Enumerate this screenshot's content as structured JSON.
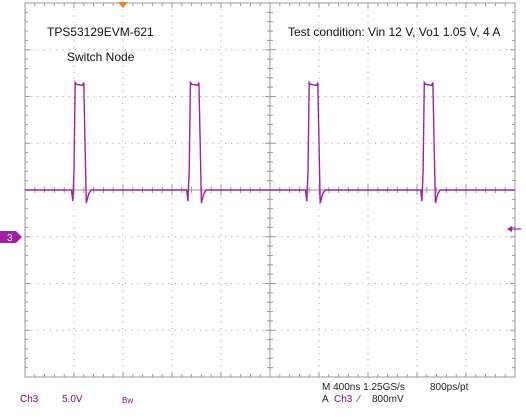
{
  "chart_data": {
    "type": "line",
    "title": "TPS53129EVM-621",
    "subtitle": "Switch Node",
    "annotation": "Test condition: Vin 12 V, Vo1 1.05 V, 4 A",
    "xlabel": "",
    "ylabel": "",
    "x_unit": "ns",
    "y_unit": "V",
    "xlim": [
      0,
      4000
    ],
    "ylim": [
      -20,
      20
    ],
    "x_divisions": 10,
    "y_divisions": 8,
    "grid": true,
    "series": [
      {
        "channel": "3",
        "color": "#a020a0",
        "x": [
          0,
          380,
          390,
          400,
          410,
          420,
          470,
          480,
          490,
          500,
          510,
          520,
          540,
          1320,
          1330,
          1340,
          1350,
          1360,
          1410,
          1420,
          1430,
          1440,
          1450,
          1460,
          1480,
          2200,
          2290,
          2300,
          2310,
          2320,
          2330,
          2380,
          2390,
          2400,
          2410,
          2420,
          2430,
          2450,
          3230,
          3240,
          3250,
          3260,
          3270,
          3320,
          3330,
          3340,
          3350,
          3360,
          3370,
          3390,
          4000
        ],
        "y": [
          0,
          0,
          -1.2,
          2,
          11.5,
          11.3,
          11.2,
          11.5,
          5,
          -1.4,
          -0.9,
          -0.4,
          0,
          0,
          -1.2,
          2,
          11.5,
          11.3,
          11.2,
          11.5,
          5,
          -1.4,
          -0.9,
          -0.4,
          0,
          0,
          0,
          -1.2,
          2,
          11.5,
          11.3,
          11.2,
          11.5,
          5,
          -1.4,
          -0.9,
          -0.4,
          0,
          0,
          -1.2,
          2,
          11.5,
          11.3,
          11.2,
          11.5,
          5,
          -1.4,
          -0.9,
          -0.4,
          0,
          0
        ]
      }
    ]
  },
  "channel_marker": "3",
  "status": {
    "ch_label": "Ch3",
    "ch_scale": "5.0V",
    "bw": "Bw",
    "horizontal": "M 400ns 1.25GS/s",
    "record": "800ps/pt",
    "trigger_prefix": "A",
    "trigger_channel": "Ch3",
    "trigger_slope": "∕",
    "trigger_level": "800mV"
  },
  "colors": {
    "trace": "#a020a0",
    "grid": "#999999",
    "trigger_marker": "#f08020"
  }
}
